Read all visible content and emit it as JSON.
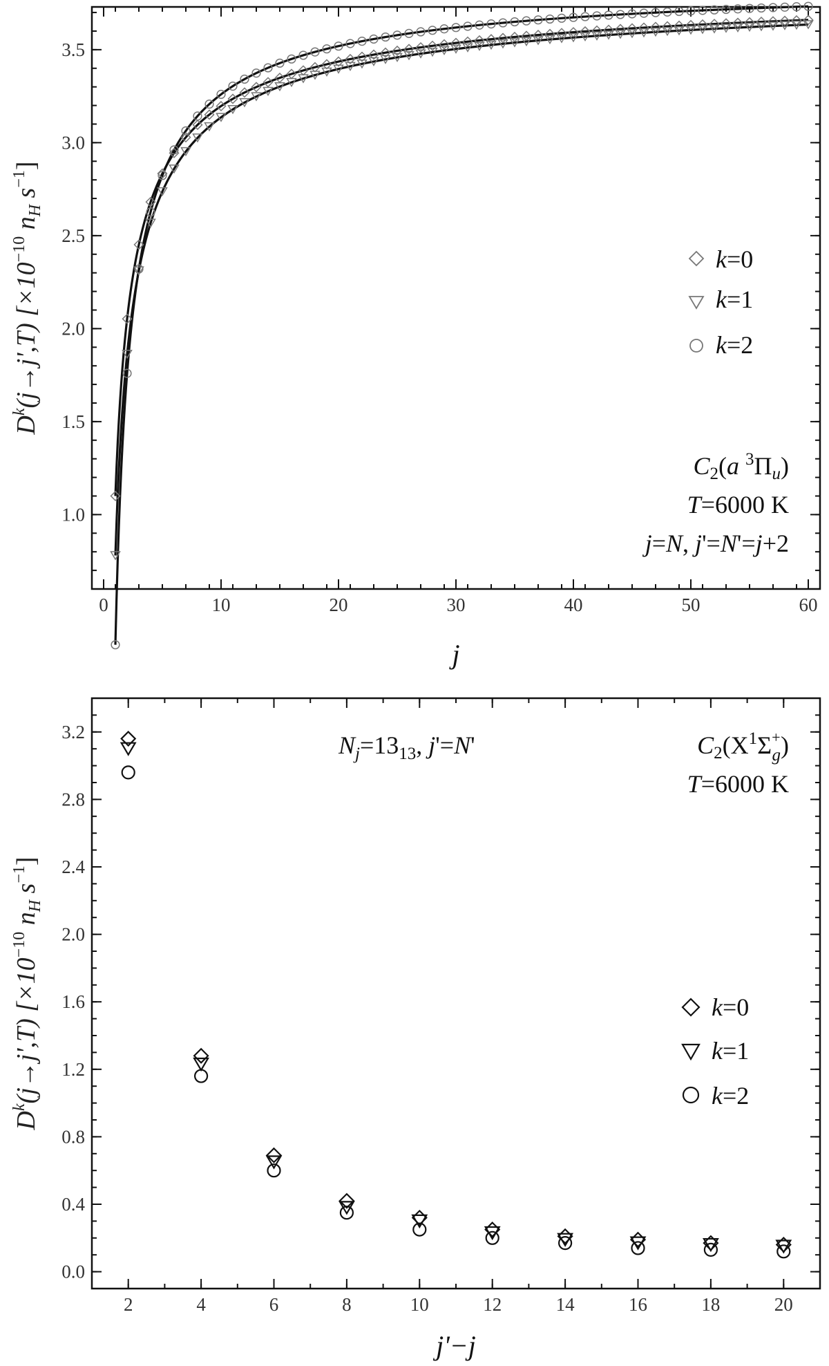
{
  "chart_data": [
    {
      "type": "scatter",
      "panel": "top",
      "x_label": "j",
      "y_label_parts": [
        "D",
        "k",
        "(j→j',T)  [×10",
        "−10",
        " n",
        "H",
        " s",
        "−1",
        "]"
      ],
      "xlim": [
        -1,
        61
      ],
      "ylim": [
        0.6,
        3.73
      ],
      "x_ticks": [
        0,
        10,
        20,
        30,
        40,
        50,
        60
      ],
      "y_ticks": [
        "1.0",
        "1.5",
        "2.0",
        "2.5",
        "3.0",
        "3.5"
      ],
      "y_tick_values": [
        1.0,
        1.5,
        2.0,
        2.5,
        3.0,
        3.5
      ],
      "x_minor_step": 2,
      "y_minor_step": 0.1,
      "series": [
        {
          "name": "k=0",
          "marker": "diamond",
          "color": "#777777",
          "x_start": 1,
          "x_end": 60,
          "fit": {
            "a": 3.9,
            "b": 2.8,
            "c": 0.6
          }
        },
        {
          "name": "k=1",
          "marker": "triangle-down",
          "color": "#777777",
          "x_start": 1,
          "x_end": 60,
          "fit": {
            "a": 3.88,
            "b": 3.1,
            "c": 0.62
          }
        },
        {
          "name": "k=2",
          "marker": "circle",
          "color": "#777777",
          "x_start": 1,
          "x_end": 60,
          "fit": {
            "a": 3.9,
            "b": 3.6,
            "c": 0.75
          }
        }
      ],
      "legend": {
        "position": "right-middle",
        "entries": [
          {
            "k": "k",
            "rest": "=0",
            "marker": "diamond"
          },
          {
            "k": "k",
            "rest": "=1",
            "marker": "triangle-down"
          },
          {
            "k": "k",
            "rest": "=2",
            "marker": "circle"
          }
        ]
      },
      "annotation": {
        "line1": {
          "a": "C",
          "b": "2",
          "c": "(",
          "d": "a ",
          "e": "3",
          "f": "Π",
          "g": "u",
          "h": ")"
        },
        "line2": {
          "a": "T",
          "b": "=6000 K"
        },
        "line3": {
          "a": "j",
          "b": "=",
          "c": "N",
          "d": ",  ",
          "e": "j",
          "f": "'=",
          "g": "N",
          "h": "'=",
          "i": "j",
          "j": "+2"
        }
      }
    },
    {
      "type": "scatter",
      "panel": "bottom",
      "x_label": "j'−j",
      "y_label_parts": [
        "D",
        "k",
        "(j→j',T)  [×10",
        "−10",
        " n",
        "H",
        " s",
        "−1",
        "]"
      ],
      "xlim": [
        1,
        21
      ],
      "ylim": [
        -0.1,
        3.4
      ],
      "x_ticks": [
        2,
        4,
        6,
        8,
        10,
        12,
        14,
        16,
        18,
        20
      ],
      "y_ticks": [
        "0.0",
        "0.4",
        "0.8",
        "1.2",
        "1.6",
        "2.0",
        "2.4",
        "2.8",
        "3.2"
      ],
      "y_tick_values": [
        0.0,
        0.4,
        0.8,
        1.2,
        1.6,
        2.0,
        2.4,
        2.8,
        3.2
      ],
      "x_minor_step": 1,
      "y_minor_step": 0.1,
      "x": [
        2,
        4,
        6,
        8,
        10,
        12,
        14,
        16,
        18,
        20
      ],
      "series": [
        {
          "name": "k=0",
          "marker": "diamond",
          "color": "#111111",
          "values": [
            3.16,
            1.28,
            0.69,
            0.42,
            0.32,
            0.25,
            0.21,
            0.19,
            0.17,
            0.16
          ]
        },
        {
          "name": "k=1",
          "marker": "triangle-down",
          "color": "#111111",
          "values": [
            3.1,
            1.23,
            0.65,
            0.38,
            0.3,
            0.23,
            0.19,
            0.17,
            0.16,
            0.15
          ]
        },
        {
          "name": "k=2",
          "marker": "circle",
          "color": "#111111",
          "values": [
            2.96,
            1.16,
            0.6,
            0.35,
            0.25,
            0.2,
            0.17,
            0.14,
            0.13,
            0.12
          ]
        }
      ],
      "legend": {
        "position": "right-middle",
        "entries": [
          {
            "k": "k",
            "rest": "=0",
            "marker": "diamond"
          },
          {
            "k": "k",
            "rest": "=1",
            "marker": "triangle-down"
          },
          {
            "k": "k",
            "rest": "=2",
            "marker": "circle"
          }
        ]
      },
      "annotation_left": {
        "a": "N",
        "b": "j",
        "c": "=13",
        "d": "13",
        "e": ", ",
        "f": "j",
        "g": "'=",
        "h": "N",
        "i": "'"
      },
      "annotation_right": {
        "line1": {
          "a": "C",
          "b": "2",
          "c": "(X",
          "d": "1",
          "e": "Σ",
          "f": "+",
          "g": "g",
          "h": ")"
        },
        "line2": {
          "a": "T",
          "b": "=6000 K"
        }
      }
    }
  ]
}
